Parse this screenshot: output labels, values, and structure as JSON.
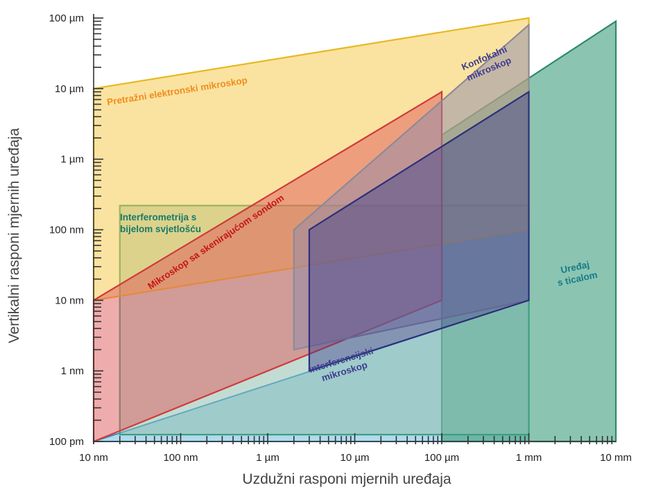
{
  "chart_data": {
    "type": "area",
    "title": "",
    "xlabel": "Uzdužni  rasponi mjernih uređaja",
    "ylabel": "Vertikalni rasponi mjernih uređaja",
    "x_scale": "log",
    "y_scale": "log",
    "x_unit": "m",
    "y_unit": "m",
    "xlim": [
      1e-08,
      0.01
    ],
    "ylim": [
      1e-10,
      0.0001
    ],
    "x_ticks": [
      {
        "value": 1e-08,
        "label": "10 nm"
      },
      {
        "value": 1e-07,
        "label": "100 nm"
      },
      {
        "value": 1e-06,
        "label": "1 µm"
      },
      {
        "value": 1e-05,
        "label": "10 µm"
      },
      {
        "value": 0.0001,
        "label": "100 µm"
      },
      {
        "value": 0.001,
        "label": "1 mm"
      },
      {
        "value": 0.01,
        "label": "10 mm"
      }
    ],
    "y_ticks": [
      {
        "value": 1e-10,
        "label": "100 pm"
      },
      {
        "value": 1e-09,
        "label": "1 nm"
      },
      {
        "value": 1e-08,
        "label": "10 nm"
      },
      {
        "value": 1e-07,
        "label": "100 nm"
      },
      {
        "value": 1e-06,
        "label": "1 µm"
      },
      {
        "value": 1e-05,
        "label": "10 µm"
      },
      {
        "value": 0.0001,
        "label": "100 µm"
      }
    ],
    "series": [
      {
        "name": "Uređaj s ticalom",
        "label_lines": [
          "Uređaj",
          "s ticalom"
        ],
        "color": "#3e9e7d",
        "polygon": [
          [
            0.0001,
            1e-10
          ],
          [
            0.01,
            1e-10
          ],
          [
            0.01,
            9e-05
          ],
          [
            0.0001,
            2.2e-06
          ]
        ]
      },
      {
        "name": "Interferometrija s bijelom svjetlošću",
        "label_lines": [
          "Interferometrija s",
          "bijelom svjetlošću"
        ],
        "color": "#8fbfb0",
        "polygon": [
          [
            2e-08,
            1.25e-10
          ],
          [
            0.001,
            1.25e-10
          ],
          [
            0.001,
            2.2e-07
          ],
          [
            2e-08,
            2.2e-07
          ]
        ]
      },
      {
        "name": "Pretražni elektronski mikroskop",
        "label_lines": [
          "Pretražni elektronski mikroskop"
        ],
        "color": "#f5c842",
        "polygon": [
          [
            1e-08,
            1e-08
          ],
          [
            0.001,
            1e-07
          ],
          [
            0.001,
            0.0001
          ],
          [
            1e-08,
            1e-05
          ]
        ]
      },
      {
        "name": "Mikroskop sa skenirajućom sondom",
        "label_lines": [
          "Mikroskop sa skenirajućom sondom"
        ],
        "color": "#e05a5a",
        "polygon": [
          [
            1e-08,
            1e-10
          ],
          [
            0.0001,
            1e-08
          ],
          [
            0.0001,
            9e-06
          ],
          [
            1e-08,
            1e-08
          ]
        ]
      },
      {
        "name": "Konfokalni mikroskop",
        "label_lines": [
          "Konfokalni",
          "mikroskop"
        ],
        "color": "#8f8bab",
        "polygon": [
          [
            2e-06,
            2e-09
          ],
          [
            0.001,
            1e-08
          ],
          [
            0.001,
            8e-05
          ],
          [
            2e-06,
            1e-07
          ]
        ]
      },
      {
        "name": "Interferencijski mikroskop",
        "label_lines": [
          "Interferencijski",
          "mikroskop"
        ],
        "color": "#3a3e8c",
        "polygon": [
          [
            3e-06,
            1e-09
          ],
          [
            0.001,
            1e-08
          ],
          [
            0.001,
            9e-06
          ],
          [
            3e-06,
            1e-07
          ]
        ]
      }
    ],
    "background_band": {
      "name": "",
      "color": "#a9d6ea",
      "polygon": [
        [
          1e-08,
          1e-10
        ],
        [
          0.001,
          1e-10
        ],
        [
          0.001,
          1e-08
        ],
        [
          1e-08,
          1e-10
        ]
      ]
    }
  }
}
